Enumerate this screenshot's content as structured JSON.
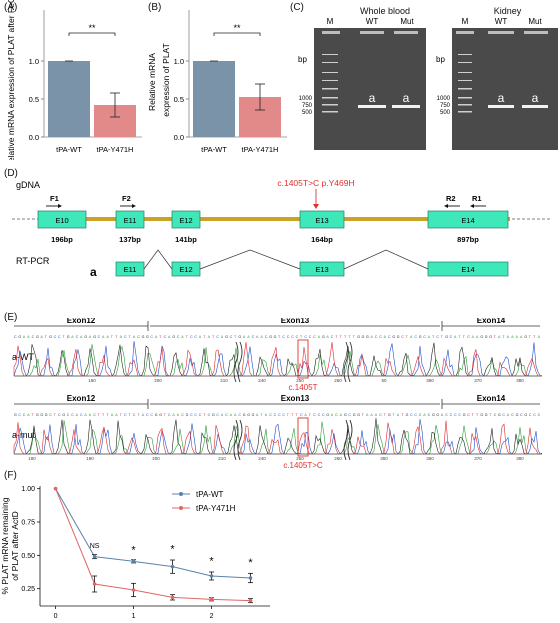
{
  "panels": {
    "A": {
      "label": "(A)",
      "ylabel": "Relative mRNA expression of PLAT after FeCl",
      "ylabel_sub": "3",
      "sig": "**",
      "categories": [
        "tPA-WT",
        "tPA-Y471H"
      ],
      "values": [
        1.0,
        0.42
      ],
      "errors": [
        0.0,
        0.16
      ],
      "yticks": [
        "0.0",
        "0.5",
        "1.0"
      ],
      "colors": [
        "#7b93a8",
        "#e28a8a"
      ]
    },
    "B": {
      "label": "(B)",
      "ylabel_line1": "Relative mRNA",
      "ylabel_line2": "expression of PLAT",
      "sig": "**",
      "categories": [
        "tPA-WT",
        "tPA-Y471H"
      ],
      "values": [
        1.0,
        0.53
      ],
      "errors": [
        0.0,
        0.17
      ],
      "yticks": [
        "0.0",
        "0.5",
        "1.0"
      ],
      "colors": [
        "#7b93a8",
        "#e28a8a"
      ]
    },
    "C": {
      "label": "(C)",
      "gels": [
        {
          "title": "Whole blood",
          "lanes": [
            "M",
            "WT",
            "Mut"
          ],
          "band_letter": "a"
        },
        {
          "title": "Kidney",
          "lanes": [
            "M",
            "WT",
            "Mut"
          ],
          "band_letter": "a"
        }
      ],
      "bp_label": "bp",
      "markers": [
        "1000",
        "750",
        "500"
      ]
    },
    "D": {
      "label": "(D)",
      "gdna_label": "gDNA",
      "rtpcr_label": "RT-PCR",
      "isoform_label": "a",
      "mutation": "c.1405T>C p.Y469H",
      "exons": [
        {
          "name": "E10",
          "size": "196bp"
        },
        {
          "name": "E11",
          "size": "137bp"
        },
        {
          "name": "E12",
          "size": "141bp"
        },
        {
          "name": "E13",
          "size": "164bp"
        },
        {
          "name": "E14",
          "size": "897bp"
        }
      ],
      "primers": [
        "F1",
        "F2",
        "R2",
        "R1"
      ]
    },
    "E": {
      "label": "(E)",
      "rows": [
        {
          "name": "a-WT",
          "annotation": "c.1405T",
          "exons": [
            "Exon12",
            "Exon13",
            "Exon14"
          ],
          "ticks": [
            "190",
            "200",
            "210",
            "240",
            "250",
            "260",
            "50",
            "360",
            "370",
            "380"
          ]
        },
        {
          "name": "a-mut",
          "annotation": "c.1405T>C",
          "exons": [
            "Exon12",
            "Exon13",
            "Exon14"
          ],
          "ticks": [
            "180",
            "190",
            "200",
            "210",
            "240",
            "250",
            "260",
            "350",
            "360",
            "370",
            "380"
          ]
        }
      ]
    },
    "F": {
      "label": "(F)",
      "ylabel_line1": "% PLAT mRNA remaining",
      "ylabel_line2": "of PLAT after ActD",
      "chart_data": {
        "type": "line",
        "x": [
          0,
          0.5,
          1,
          1.5,
          2,
          2.5
        ],
        "xticks": [
          "0",
          "1",
          "2"
        ],
        "yticks": [
          "0.25",
          "0.50",
          "0.75",
          "1.00"
        ],
        "ylim": [
          0.12,
          1.02
        ],
        "series": [
          {
            "name": "tPA-WT",
            "color": "#5b82a8",
            "values": [
              1.0,
              0.49,
              0.455,
              0.415,
              0.345,
              0.33
            ],
            "errors": [
              0.0,
              0.015,
              0.012,
              0.05,
              0.03,
              0.035
            ]
          },
          {
            "name": "tPA-Y471H",
            "color": "#e06666",
            "values": [
              1.0,
              0.285,
              0.24,
              0.185,
              0.17,
              0.16
            ],
            "errors": [
              0.0,
              0.06,
              0.05,
              0.02,
              0.012,
              0.015
            ]
          }
        ],
        "annotations": [
          "NS",
          "*",
          "*",
          "*",
          "*"
        ]
      }
    }
  }
}
